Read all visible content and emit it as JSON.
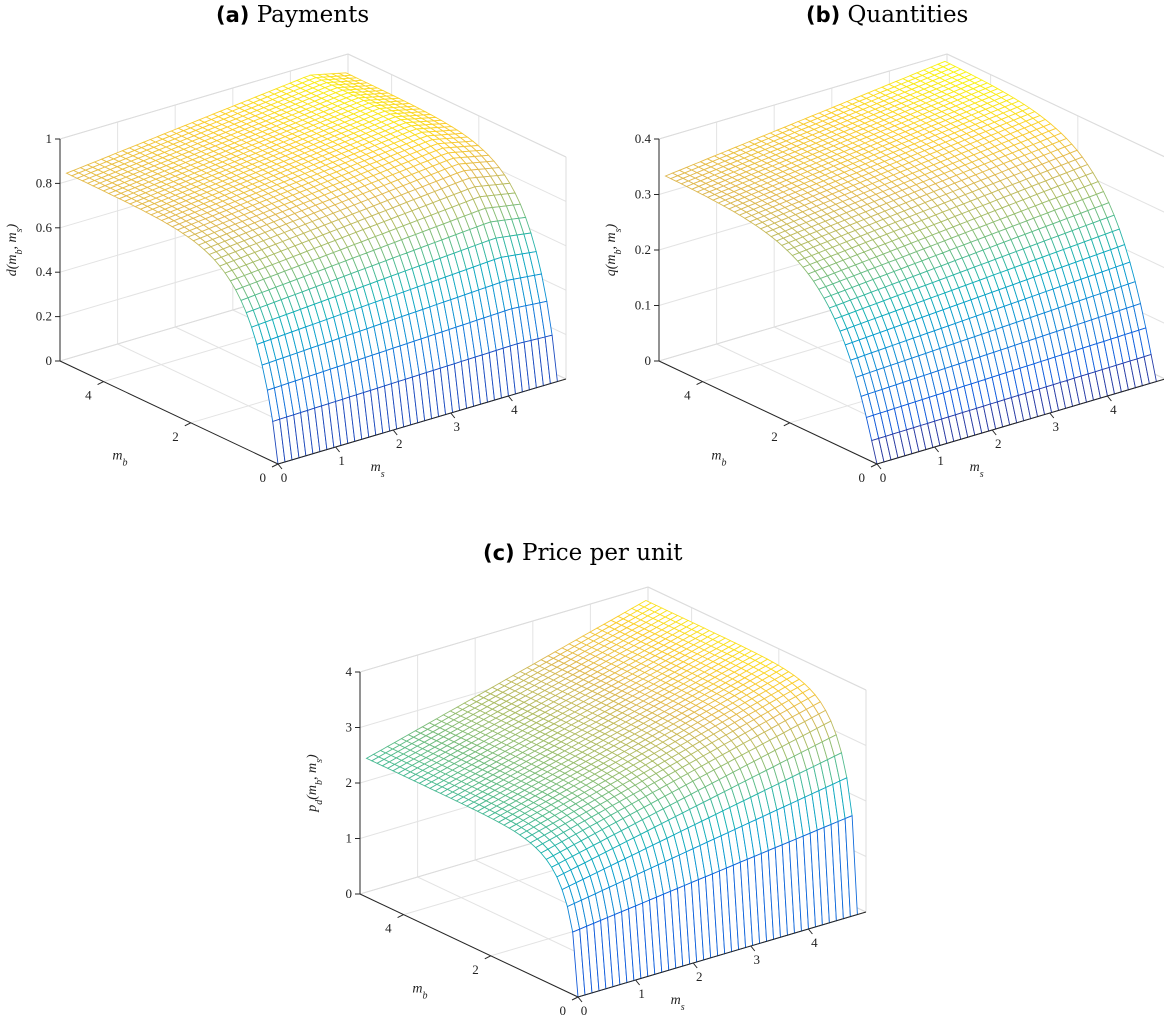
{
  "figure": {
    "panels": [
      {
        "id": "a",
        "title_letter": "(a)",
        "title_text": "Payments",
        "zlabel": "d(m_b, m_s)",
        "xlabel": "m_s",
        "ylabel": "m_b"
      },
      {
        "id": "b",
        "title_letter": "(b)",
        "title_text": "Quantities",
        "zlabel": "q(m_b, m_s)",
        "xlabel": "m_s",
        "ylabel": "m_b"
      },
      {
        "id": "c",
        "title_letter": "(c)",
        "title_text": "Price per unit",
        "zlabel": "p_d(m_b, m_s)",
        "xlabel": "m_s",
        "ylabel": "m_b"
      }
    ]
  },
  "chart_data": [
    {
      "type": "surface",
      "title": "Payments",
      "xlabel": "m_s",
      "ylabel": "m_b",
      "zlabel": "d(m_b, m_s)",
      "xlim": [
        0,
        5
      ],
      "ylim": [
        0,
        5
      ],
      "zlim": [
        0,
        1
      ],
      "xticks": [
        0,
        1,
        2,
        3,
        4
      ],
      "yticks": [
        0,
        2,
        4
      ],
      "zticks": [
        0,
        0.2,
        0.4,
        0.6,
        0.8,
        1
      ],
      "zticklabels": [
        "0",
        "0.2",
        "0.4",
        "0.6",
        "0.8",
        "1"
      ],
      "surface_function": "payments",
      "grid": true,
      "colormap": "parula"
    },
    {
      "type": "surface",
      "title": "Quantities",
      "xlabel": "m_s",
      "ylabel": "m_b",
      "zlabel": "q(m_b, m_s)",
      "xlim": [
        0,
        5
      ],
      "ylim": [
        0,
        5
      ],
      "zlim": [
        0,
        0.4
      ],
      "xticks": [
        0,
        1,
        2,
        3,
        4
      ],
      "yticks": [
        0,
        2,
        4
      ],
      "zticks": [
        0,
        0.1,
        0.2,
        0.3,
        0.4
      ],
      "zticklabels": [
        "0",
        "0.1",
        "0.2",
        "0.3",
        "0.4"
      ],
      "surface_function": "quantities",
      "grid": true,
      "colormap": "parula"
    },
    {
      "type": "surface",
      "title": "Price per unit",
      "xlabel": "m_s",
      "ylabel": "m_b",
      "zlabel": "p_d(m_b, m_s)",
      "xlim": [
        0,
        5
      ],
      "ylim": [
        0,
        5
      ],
      "zlim": [
        0,
        4
      ],
      "xticks": [
        0,
        1,
        2,
        3,
        4
      ],
      "yticks": [
        0,
        2,
        4
      ],
      "zticks": [
        0,
        1,
        2,
        3,
        4
      ],
      "zticklabels": [
        "0",
        "1",
        "2",
        "3",
        "4"
      ],
      "surface_function": "price",
      "grid": true,
      "colormap": "parula"
    }
  ]
}
